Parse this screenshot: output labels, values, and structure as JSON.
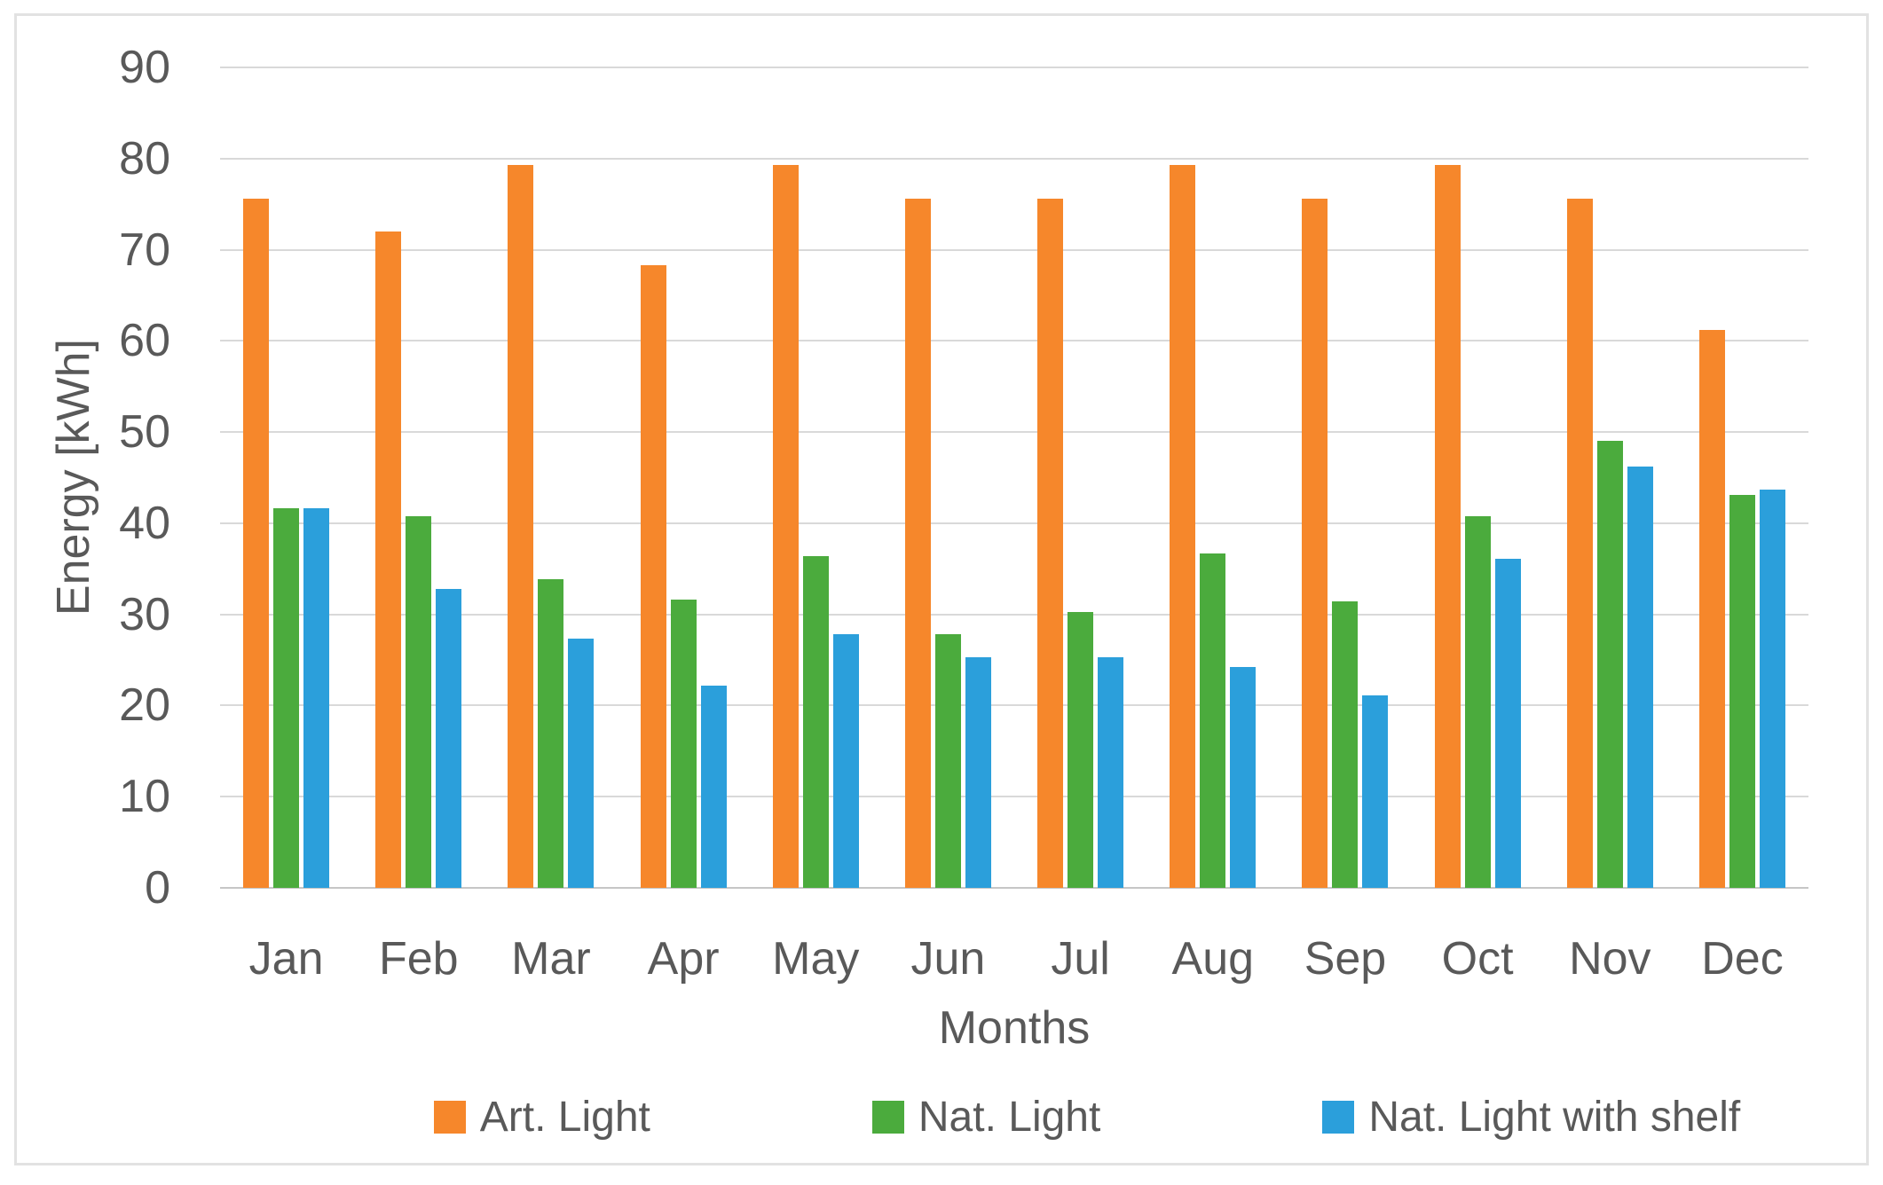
{
  "figure": {
    "background": "#ffffff",
    "frame_color": "#e2e2e2",
    "gridline_color": "#d9d9d9",
    "axis_line_color": "#c6c6c6",
    "text_color": "#595959"
  },
  "chart_data": {
    "type": "bar",
    "xlabel": "Months",
    "ylabel": "Energy [kWh]",
    "ylim": [
      0,
      90
    ],
    "yticks": [
      0,
      10,
      20,
      30,
      40,
      50,
      60,
      70,
      80,
      90
    ],
    "grid": true,
    "legend_position": "bottom",
    "categories": [
      "Jan",
      "Feb",
      "Mar",
      "Apr",
      "May",
      "Jun",
      "Jul",
      "Aug",
      "Sep",
      "Oct",
      "Nov",
      "Dec"
    ],
    "series": [
      {
        "name": "Art. Light",
        "color": "#f6872b",
        "values": [
          75.6,
          72.0,
          79.3,
          68.3,
          79.3,
          75.6,
          75.6,
          79.3,
          75.6,
          79.3,
          75.6,
          61.2
        ]
      },
      {
        "name": "Nat. Light",
        "color": "#4bab3d",
        "values": [
          41.6,
          40.8,
          33.9,
          31.6,
          36.4,
          27.8,
          30.3,
          36.7,
          31.4,
          40.8,
          49.0,
          43.1
        ]
      },
      {
        "name": "Nat. Light with shelf",
        "color": "#2b9fdb",
        "values": [
          41.6,
          32.8,
          27.3,
          22.2,
          27.8,
          25.3,
          25.3,
          24.2,
          21.1,
          36.1,
          46.2,
          43.7
        ]
      }
    ]
  }
}
